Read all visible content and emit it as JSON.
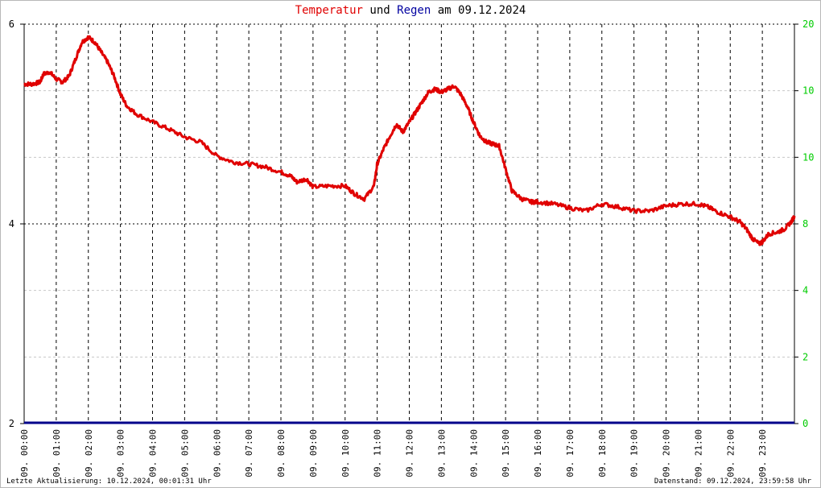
{
  "title": {
    "part1": "Temperatur",
    "part2": "und",
    "part3": "Regen",
    "part4": "am 09.12.2024"
  },
  "colors": {
    "temperature": "#e00000",
    "rain": "#00008b",
    "right_axis_ticks": "#00cc00",
    "grid": "#000000"
  },
  "footer": {
    "left": "Letzte Aktualisierung: 10.12.2024, 00:01:31 Uhr",
    "right": "Datenstand: 09.12.2024, 23:59:58 Uhr"
  },
  "chart_data": {
    "type": "line",
    "title": "Temperatur und Regen am 09.12.2024",
    "x_unit": "hours",
    "xlim": [
      0,
      24
    ],
    "x_tick_labels": [
      "09. 00:00",
      "09. 01:00",
      "09. 02:00",
      "09. 03:00",
      "09. 04:00",
      "09. 05:00",
      "09. 06:00",
      "09. 07:00",
      "09. 08:00",
      "09. 09:00",
      "09. 10:00",
      "09. 11:00",
      "09. 12:00",
      "09. 13:00",
      "09. 14:00",
      "09. 15:00",
      "09. 16:00",
      "09. 17:00",
      "09. 18:00",
      "09. 19:00",
      "09. 20:00",
      "09. 21:00",
      "09. 22:00",
      "09. 23:00"
    ],
    "y_left": {
      "ylim": [
        2,
        6
      ],
      "ticks": [
        "2",
        "4",
        "6"
      ]
    },
    "y_right": {
      "ylim": [
        0,
        20
      ],
      "ticks": [
        "0",
        "2",
        "4",
        "8",
        "10",
        "10",
        "20"
      ]
    },
    "grid": true,
    "series": [
      {
        "name": "Temperatur",
        "color": "#e00000",
        "axis": "left",
        "x": [
          0,
          0.25,
          0.5,
          0.6,
          0.8,
          1.0,
          1.2,
          1.4,
          1.6,
          1.8,
          2.0,
          2.2,
          2.4,
          2.6,
          2.8,
          3.0,
          3.2,
          3.5,
          4.0,
          4.5,
          5.0,
          5.5,
          6.0,
          6.5,
          7.0,
          7.5,
          8.0,
          8.3,
          8.5,
          8.8,
          9.0,
          9.5,
          10.0,
          10.3,
          10.6,
          10.9,
          11.0,
          11.2,
          11.4,
          11.6,
          11.8,
          12.0,
          12.2,
          12.4,
          12.6,
          12.8,
          13.0,
          13.2,
          13.4,
          13.6,
          13.8,
          14.0,
          14.2,
          14.4,
          14.6,
          14.8,
          15.0,
          15.2,
          15.5,
          15.8,
          16.0,
          16.5,
          17.0,
          17.5,
          18.0,
          18.5,
          19.0,
          19.5,
          20.0,
          20.5,
          21.0,
          21.3,
          21.6,
          22.0,
          22.3,
          22.5,
          22.7,
          22.9,
          23.0,
          23.2,
          23.5,
          23.7,
          23.9,
          24.0
        ],
        "y": [
          5.4,
          5.4,
          5.42,
          5.5,
          5.52,
          5.45,
          5.42,
          5.48,
          5.65,
          5.82,
          5.87,
          5.82,
          5.72,
          5.62,
          5.48,
          5.3,
          5.18,
          5.1,
          5.02,
          4.95,
          4.87,
          4.82,
          4.68,
          4.62,
          4.6,
          4.57,
          4.52,
          4.48,
          4.42,
          4.45,
          4.37,
          4.38,
          4.38,
          4.3,
          4.25,
          4.38,
          4.6,
          4.75,
          4.88,
          5.0,
          4.92,
          5.02,
          5.12,
          5.22,
          5.32,
          5.35,
          5.32,
          5.35,
          5.38,
          5.3,
          5.18,
          5.02,
          4.88,
          4.82,
          4.8,
          4.78,
          4.55,
          4.33,
          4.25,
          4.22,
          4.22,
          4.2,
          4.16,
          4.13,
          4.2,
          4.17,
          4.13,
          4.13,
          4.18,
          4.2,
          4.2,
          4.17,
          4.12,
          4.07,
          4.02,
          3.95,
          3.85,
          3.8,
          3.82,
          3.9,
          3.92,
          3.95,
          4.02,
          4.08
        ]
      },
      {
        "name": "Regen",
        "color": "#00008b",
        "axis": "right",
        "x": [
          0,
          24
        ],
        "y": [
          0,
          0
        ]
      }
    ]
  }
}
